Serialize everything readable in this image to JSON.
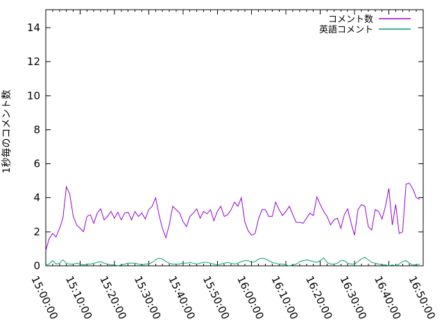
{
  "chart_data": {
    "type": "line",
    "title": "",
    "ylabel": "1秒毎のコメント数",
    "xlabel": "",
    "grid": false,
    "legend_position": "top-right-inside",
    "ylim": [
      0,
      15
    ],
    "y_ticks": [
      0,
      2,
      4,
      6,
      8,
      10,
      12,
      14
    ],
    "x_tick_labels": [
      "15:00:00",
      "15:10:00",
      "15:20:00",
      "15:30:00",
      "15:40:00",
      "15:50:00",
      "16:00:00",
      "16:10:00",
      "16:20:00",
      "16:30:00",
      "16:40:00",
      "16:50:00"
    ],
    "x_range_minutes": [
      0,
      110
    ],
    "x_major_interval_minutes": 10,
    "x_minor_interval_minutes": 2,
    "x_start_minute": 0,
    "x_step_minutes": 1,
    "series": [
      {
        "name": "コメント数",
        "color": "#9400d3",
        "values": [
          0.9,
          1.6,
          1.9,
          1.7,
          2.2,
          2.8,
          4.65,
          4.2,
          2.9,
          2.4,
          2.2,
          2.0,
          2.9,
          3.0,
          2.5,
          3.1,
          3.35,
          2.7,
          2.9,
          3.2,
          2.8,
          3.15,
          2.7,
          3.1,
          3.15,
          2.7,
          3.2,
          2.9,
          3.1,
          2.75,
          3.3,
          3.5,
          4.0,
          3.0,
          2.2,
          1.65,
          2.4,
          3.5,
          3.3,
          3.1,
          2.6,
          2.3,
          2.9,
          3.1,
          3.35,
          2.8,
          3.2,
          3.05,
          3.3,
          2.65,
          3.2,
          3.5,
          2.9,
          3.0,
          3.3,
          3.75,
          3.5,
          4.0,
          2.6,
          2.05,
          1.8,
          1.9,
          2.75,
          3.3,
          3.3,
          2.9,
          2.9,
          3.75,
          3.3,
          2.95,
          3.2,
          3.5,
          3.0,
          2.55,
          2.55,
          2.5,
          2.8,
          3.1,
          2.95,
          4.05,
          3.6,
          3.2,
          2.9,
          2.4,
          2.7,
          2.8,
          2.2,
          3.0,
          3.35,
          2.5,
          1.8,
          3.3,
          3.6,
          3.5,
          2.3,
          2.1,
          3.3,
          3.2,
          2.75,
          3.5,
          4.55,
          2.4,
          3.6,
          1.9,
          2.0,
          4.8,
          4.85,
          4.5,
          4.0,
          3.9
        ]
      },
      {
        "name": "英語コメント",
        "color": "#009e73",
        "values": [
          0.05,
          0.1,
          0.3,
          0.1,
          0.15,
          0.35,
          0.15,
          0.1,
          0.1,
          0.15,
          0.1,
          0.05,
          0.1,
          0.1,
          0.15,
          0.2,
          0.25,
          0.15,
          0.1,
          0.05,
          0.05,
          0.0,
          0.05,
          0.1,
          0.15,
          0.15,
          0.15,
          0.1,
          0.05,
          0.1,
          0.1,
          0.2,
          0.35,
          0.45,
          0.4,
          0.25,
          0.15,
          0.1,
          0.1,
          0.1,
          0.15,
          0.15,
          0.2,
          0.15,
          0.1,
          0.15,
          0.2,
          0.2,
          0.15,
          0.1,
          0.05,
          0.1,
          0.15,
          0.2,
          0.15,
          0.1,
          0.15,
          0.25,
          0.3,
          0.3,
          0.2,
          0.25,
          0.4,
          0.45,
          0.4,
          0.3,
          0.2,
          0.15,
          0.1,
          0.1,
          0.05,
          0.0,
          0.05,
          0.1,
          0.25,
          0.3,
          0.35,
          0.3,
          0.25,
          0.2,
          0.3,
          0.47,
          0.2,
          0.1,
          0.1,
          0.15,
          0.3,
          0.3,
          0.15,
          0.1,
          0.1,
          0.25,
          0.4,
          0.5,
          0.35,
          0.2,
          0.15,
          0.1,
          0.05,
          0.05,
          0.0,
          0.05,
          0.0,
          0.1,
          0.25,
          0.3,
          0.15,
          0.05,
          0.05,
          0.1
        ]
      }
    ]
  },
  "colors": {
    "background": "#ffffff",
    "frame": "#000000",
    "text": "#000000",
    "series_comments": "#9400d3",
    "series_english": "#009e73"
  }
}
